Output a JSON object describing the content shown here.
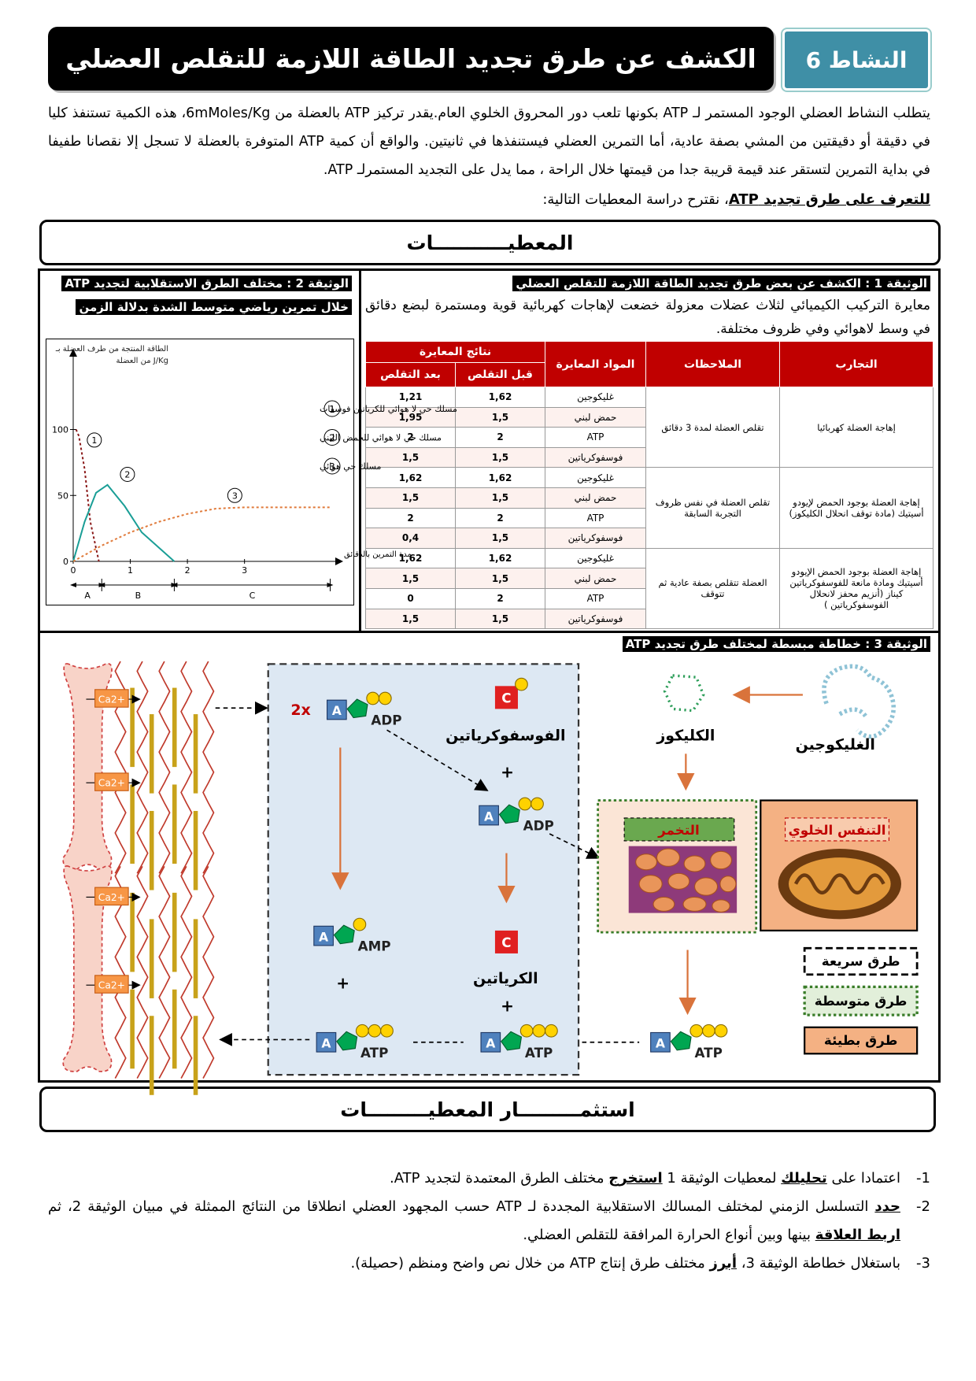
{
  "header": {
    "activity": "النشاط 6",
    "title": "الكشف عن طرق تجديد الطاقة اللازمة للتقلص العضلي"
  },
  "intro": "يتطلب النشاط العضلي الوجود المستمر لـ ATP بكونها تلعب دور المحروق الخلوي العام.يقدر تركيز ATP بالعضلة من 6mMoles/Kg، هذه الكمية تستنفذ كليا في دقيقة أو دقيقتين من المشي بصفة عادية، أما التمرين العضلي فيستنفذها في ثانيتين. والواقع أن كمية ATP المتوفرة بالعضلة لا تسجل إلا نقصانا طفيفا في بداية التمرين لتستقر عند قيمة قريبة جدا من قيمتها خلال الراحة ، مما يدل على التجديد المستمرلـ ATP.",
  "lead": [
    {
      "text": "للتعرف على طرق تجديد ATP",
      "strong": true
    },
    {
      "text": "، نقترح دراسة المعطيات التالية:",
      "strong": false
    }
  ],
  "section_1": "المعطيـــــــــــات",
  "document_1": {
    "title": "الوثيقة 1 : الكشف عن  بعض طرق تجديد الطاقة اللازمة للتقلص العضلي",
    "description": "معايرة التركيب الكيميائي لثلاث عضلات معزولة خضعت لإهاجات كهربائية قوية ومستمرة لبضع دقائق في وسط لاهوائي وفي ظروف مختلفة.",
    "table": {
      "headers": {
        "experiment": "التجارب",
        "observation": "الملاحظات",
        "substance": "المواد المعايرة",
        "results": "نتائج المعايرة",
        "before": "قبل التقلص",
        "after": "بعد التقلص"
      },
      "rows": [
        {
          "experiment": "إهاجة العضلة كهربائيا",
          "observation": "تقلص العضلة لمدة 3 دقائق",
          "measurements": [
            {
              "substance": "غليكوجين",
              "before": "1,62",
              "after": "1,21"
            },
            {
              "substance": "حمض لبني",
              "before": "1,5",
              "after": "1,95"
            },
            {
              "substance": "ATP",
              "before": "2",
              "after": "2"
            },
            {
              "substance": "فوسفوكرياتين",
              "before": "1,5",
              "after": "1,5"
            }
          ]
        },
        {
          "experiment": "إهاجة العضلة بوجود الحمض لإيودو أسيتيك (مادة توقف انحلال الكليكوز)",
          "observation": "تقلص العضلة في نفس ظروف التجربة السابقة",
          "measurements": [
            {
              "substance": "غليكوجين",
              "before": "1,62",
              "after": "1,62"
            },
            {
              "substance": "حمض لبني",
              "before": "1,5",
              "after": "1,5"
            },
            {
              "substance": "ATP",
              "before": "2",
              "after": "2"
            },
            {
              "substance": "فوسفوكرياتين",
              "before": "1,5",
              "after": "0,4"
            }
          ]
        },
        {
          "experiment": "إهاجة العضلة بوجود الحمض الإيودو أسيتيك ومادة مانعة للفوسفوكرياتين كيناز (أنزيم محفز لانحلال الفوسفوكرياتين )",
          "observation": "العضلة تتقلص بصفة عادية ثم تتوقف",
          "measurements": [
            {
              "substance": "غليكوجين",
              "before": "1,62",
              "after": "1,62"
            },
            {
              "substance": "حمض لبني",
              "before": "1,5",
              "after": "1,5"
            },
            {
              "substance": "ATP",
              "before": "2",
              "after": "0"
            },
            {
              "substance": "فوسفوكرياتين",
              "before": "1,5",
              "after": "1,5"
            }
          ]
        }
      ]
    }
  },
  "document_2": {
    "title": [
      "الوثيقة 2 : مختلف الطرق الاستقلابية لتجديد ATP",
      "خلال تمرين رياضي متوسط الشدة بدلالة الزمن"
    ],
    "chart": {
      "type": "line",
      "ylabel": "الطاقة المنتجة من طرف العضلة بـ J/Kg من العضلة",
      "xlabel": "مدة التمرين بالدقائق",
      "xlim": [
        0,
        4.7
      ],
      "ylim": [
        0,
        160
      ],
      "xticks": [
        0,
        1,
        2,
        3
      ],
      "yticks": [
        0,
        50,
        100
      ],
      "series": [
        {
          "label": "1",
          "name": "مسلك حي لا هوائي للكرياتين فوسفات",
          "color": "#8b1a1a",
          "style": "dotted",
          "x": [
            0.05,
            0.1,
            0.2,
            0.3,
            0.45
          ],
          "values": [
            100,
            95,
            70,
            30,
            0
          ]
        },
        {
          "label": "2",
          "name": "مسلك حي لا هوائي للحمض اللبني",
          "color": "#1a9e96",
          "style": "solid",
          "x": [
            0,
            0.2,
            0.4,
            0.6,
            0.9,
            1.2,
            1.77
          ],
          "values": [
            0,
            30,
            52,
            58,
            42,
            22,
            0
          ]
        },
        {
          "label": "3",
          "name": "مسلك حي هوائي",
          "color": "#e07a3a",
          "style": "dotted",
          "x": [
            0,
            0.5,
            1,
            1.5,
            2,
            2.5,
            3,
            3.5,
            4.5
          ],
          "values": [
            0,
            12,
            22,
            30,
            36,
            40,
            41,
            41,
            41
          ]
        }
      ],
      "phases": [
        {
          "label": "A",
          "from": 0,
          "to": 0.5
        },
        {
          "label": "B",
          "from": 0.5,
          "to": 1.77
        },
        {
          "label": "C",
          "from": 1.77,
          "to": 4.5
        }
      ]
    }
  },
  "document_3": {
    "title": "الوثيقة 3 : خطاطة مبسطة لمختلف طرق تجديد ATP",
    "base_letter": "A",
    "creatine_letter": "C",
    "calcium": "Ca2+",
    "multiplier": "2x",
    "plus": "+",
    "adp": "ADP",
    "amp": "AMP",
    "atp": "ATP",
    "phosphocreatine": "الفوسفوكرياتين",
    "creatine": "الكرياتين",
    "glycogen": "الغليكوجين",
    "glucose": "الكليكوز",
    "fermentation": "التخمر",
    "respiration": "التنفس الخلوي",
    "legend": [
      "طرق سريعة",
      "طرق متوسطة",
      "طرق بطيئة"
    ]
  },
  "section_2": "استثمـــــــــار المعطيـــــــــات",
  "questions": [
    {
      "number": "-1",
      "parts": [
        {
          "text": "اعتمادا على ",
          "strong": false
        },
        {
          "text": "تحليلك",
          "strong": true
        },
        {
          "text": " لمعطيات الوثيقة 1 ",
          "strong": false
        },
        {
          "text": "استخرج",
          "strong": true
        },
        {
          "text": " مختلف الطرق المعتمدة لتجديد ATP.",
          "strong": false
        }
      ]
    },
    {
      "number": "-2",
      "parts": [
        {
          "text": "حدد",
          "strong": true
        },
        {
          "text": " التسلسل الزمني لمختلف المسالك الاستقلابية المجددة لـ ATP حسب المجهود العضلي انطلاقا من النتائج الممثلة في مبيان الوثيقة 2، ثم ",
          "strong": false
        },
        {
          "text": "اربط العلاقة",
          "strong": true
        },
        {
          "text": " بينها وبين أنواع الحرارة المرافقة للتقلص العضلي.",
          "strong": false
        }
      ]
    },
    {
      "number": "-3",
      "parts": [
        {
          "text": "باستغلال خطاطة الوثيقة 3، ",
          "strong": false
        },
        {
          "text": "أبرز",
          "strong": true
        },
        {
          "text": " مختلف طرق إنتاج ATP من خلال نص واضح ومنظم (حصيلة).",
          "strong": false
        }
      ]
    }
  ]
}
